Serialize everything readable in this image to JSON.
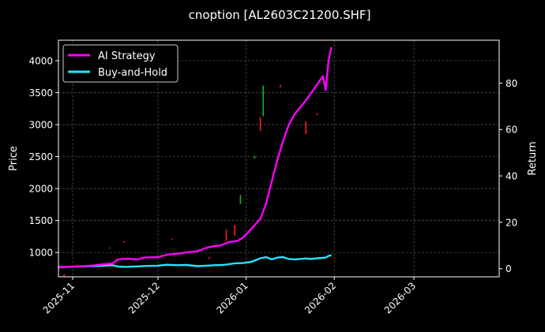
{
  "chart_data": {
    "type": "line",
    "title": "cnoption [AL2603C21200.SHF]",
    "ylabel_left": "Price",
    "ylabel_right": "Return",
    "ylim_left": [
      620,
      4320
    ],
    "ylim_right": [
      -3.5,
      98.5
    ],
    "xlim": [
      "2025-10-27",
      "2026-03-31"
    ],
    "x_ticks": [
      "2025-11",
      "2025-12",
      "2026-01",
      "2026-02",
      "2026-03"
    ],
    "x_tick_dates": [
      "2025-11-01",
      "2025-12-01",
      "2026-01-01",
      "2026-02-01",
      "2026-03-01"
    ],
    "y_ticks_left": [
      1000,
      1500,
      2000,
      2500,
      3000,
      3500,
      4000
    ],
    "y_ticks_right": [
      0,
      20,
      40,
      60,
      80
    ],
    "grid": true,
    "legend_position": "top-left",
    "series": [
      {
        "name": "AI Strategy",
        "axis": "right",
        "color": "#ff00ff",
        "x": [
          "2025-10-27",
          "2025-10-30",
          "2025-11-03",
          "2025-11-07",
          "2025-11-11",
          "2025-11-15",
          "2025-11-17",
          "2025-11-20",
          "2025-11-24",
          "2025-11-26",
          "2025-12-01",
          "2025-12-04",
          "2025-12-08",
          "2025-12-11",
          "2025-12-15",
          "2025-12-18",
          "2025-12-21",
          "2025-12-23",
          "2025-12-26",
          "2025-12-29",
          "2025-12-31",
          "2026-01-02",
          "2026-01-06",
          "2026-01-08",
          "2026-01-10",
          "2026-01-12",
          "2026-01-14",
          "2026-01-16",
          "2026-01-18",
          "2026-01-20",
          "2026-01-22",
          "2026-01-24",
          "2026-01-26",
          "2026-01-28",
          "2026-01-29",
          "2026-01-30",
          "2026-01-31"
        ],
        "y": [
          0.5,
          0.7,
          1.0,
          1.2,
          1.8,
          2.2,
          4.0,
          4.3,
          4.0,
          4.8,
          5.0,
          6.0,
          6.5,
          7.0,
          7.5,
          9.0,
          9.8,
          10.0,
          11.5,
          12.0,
          13.5,
          16.0,
          21.5,
          28.0,
          37.5,
          47.0,
          55.0,
          62.0,
          66.5,
          69.5,
          72.5,
          76.0,
          79.5,
          83.0,
          77.0,
          90.0,
          95.5
        ]
      },
      {
        "name": "Buy-and-Hold",
        "axis": "right",
        "color": "#22e5ff",
        "x": [
          "2025-10-27",
          "2025-10-30",
          "2025-11-03",
          "2025-11-07",
          "2025-11-11",
          "2025-11-15",
          "2025-11-17",
          "2025-11-20",
          "2025-11-24",
          "2025-11-27",
          "2025-12-01",
          "2025-12-04",
          "2025-12-08",
          "2025-12-11",
          "2025-12-15",
          "2025-12-18",
          "2025-12-21",
          "2025-12-24",
          "2025-12-28",
          "2025-12-31",
          "2026-01-03",
          "2026-01-06",
          "2026-01-08",
          "2026-01-10",
          "2026-01-12",
          "2026-01-14",
          "2026-01-16",
          "2026-01-18",
          "2026-01-20",
          "2026-01-22",
          "2026-01-24",
          "2026-01-26",
          "2026-01-28",
          "2026-01-29",
          "2026-01-30",
          "2026-01-31"
        ],
        "y": [
          0.7,
          0.8,
          1.0,
          1.1,
          1.2,
          1.5,
          0.9,
          0.8,
          1.0,
          1.2,
          1.3,
          1.7,
          1.5,
          1.6,
          1.1,
          1.3,
          1.5,
          1.6,
          2.3,
          2.4,
          3.0,
          4.5,
          5.0,
          4.0,
          4.8,
          5.0,
          4.2,
          4.0,
          4.2,
          4.4,
          4.2,
          4.5,
          4.7,
          4.8,
          5.5,
          5.8
        ]
      }
    ],
    "candles_red": [
      {
        "date": "2025-10-29",
        "low": 620,
        "high": 660
      },
      {
        "date": "2025-11-05",
        "low": 780,
        "high": 800
      },
      {
        "date": "2025-11-14",
        "low": 1060,
        "high": 1080
      },
      {
        "date": "2025-11-19",
        "low": 1155,
        "high": 1180
      },
      {
        "date": "2025-12-06",
        "low": 1195,
        "high": 1215
      },
      {
        "date": "2025-12-19",
        "low": 900,
        "high": 930
      },
      {
        "date": "2025-12-25",
        "low": 1180,
        "high": 1360
      },
      {
        "date": "2025-12-28",
        "low": 1260,
        "high": 1430
      },
      {
        "date": "2026-01-06",
        "low": 2900,
        "high": 3120
      },
      {
        "date": "2026-01-13",
        "low": 3580,
        "high": 3620
      },
      {
        "date": "2026-01-22",
        "low": 2850,
        "high": 3050
      },
      {
        "date": "2026-01-26",
        "low": 3150,
        "high": 3180
      }
    ],
    "candles_green": [
      {
        "date": "2025-12-30",
        "low": 1760,
        "high": 1900
      },
      {
        "date": "2026-01-04",
        "low": 2470,
        "high": 2510
      },
      {
        "date": "2026-01-07",
        "low": 3130,
        "high": 3610
      }
    ]
  }
}
